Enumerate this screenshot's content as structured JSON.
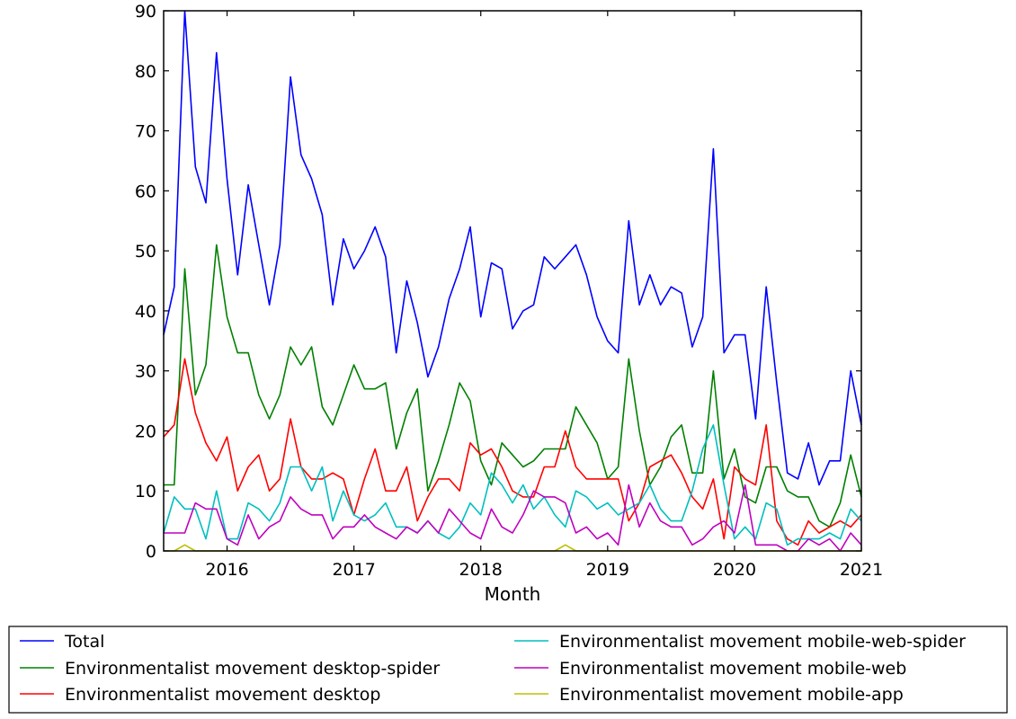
{
  "chart_data": {
    "type": "line",
    "title": "",
    "xlabel": "Month",
    "ylabel": "",
    "xlim": [
      "2015-07",
      "2021-01"
    ],
    "ylim": [
      0,
      90
    ],
    "x_tick_labels": [
      "2016",
      "2017",
      "2018",
      "2019",
      "2020",
      "2021"
    ],
    "y_ticks": [
      0,
      10,
      20,
      30,
      40,
      50,
      60,
      70,
      80,
      90
    ],
    "grid": false,
    "legend_placement": "below the chart, two columns",
    "x": [
      "2015-07",
      "2015-08",
      "2015-09",
      "2015-10",
      "2015-11",
      "2015-12",
      "2016-01",
      "2016-02",
      "2016-03",
      "2016-04",
      "2016-05",
      "2016-06",
      "2016-07",
      "2016-08",
      "2016-09",
      "2016-10",
      "2016-11",
      "2016-12",
      "2017-01",
      "2017-02",
      "2017-03",
      "2017-04",
      "2017-05",
      "2017-06",
      "2017-07",
      "2017-08",
      "2017-09",
      "2017-10",
      "2017-11",
      "2017-12",
      "2018-01",
      "2018-02",
      "2018-03",
      "2018-04",
      "2018-05",
      "2018-06",
      "2018-07",
      "2018-08",
      "2018-09",
      "2018-10",
      "2018-11",
      "2018-12",
      "2019-01",
      "2019-02",
      "2019-03",
      "2019-04",
      "2019-05",
      "2019-06",
      "2019-07",
      "2019-08",
      "2019-09",
      "2019-10",
      "2019-11",
      "2019-12",
      "2020-01",
      "2020-02",
      "2020-03",
      "2020-04",
      "2020-05",
      "2020-06",
      "2020-07",
      "2020-08",
      "2020-09",
      "2020-10",
      "2020-11",
      "2020-12",
      "2021-01"
    ],
    "series": [
      {
        "name": "Total",
        "color": "#0000ff",
        "values": [
          36,
          44,
          90,
          64,
          58,
          83,
          62,
          46,
          61,
          51,
          41,
          51,
          79,
          66,
          62,
          56,
          41,
          52,
          47,
          50,
          54,
          49,
          33,
          45,
          38,
          29,
          34,
          42,
          47,
          54,
          39,
          48,
          47,
          37,
          40,
          41,
          49,
          47,
          49,
          51,
          46,
          39,
          35,
          33,
          55,
          41,
          46,
          41,
          44,
          43,
          34,
          39,
          67,
          33,
          36,
          36,
          22,
          44,
          28,
          13,
          12,
          18,
          11,
          15,
          15,
          30,
          21
        ]
      },
      {
        "name": "Environmentalist movement desktop-spider",
        "color": "#008000",
        "values": [
          11,
          11,
          47,
          26,
          31,
          51,
          39,
          33,
          33,
          26,
          22,
          26,
          34,
          31,
          34,
          24,
          21,
          26,
          31,
          27,
          27,
          28,
          17,
          23,
          27,
          10,
          15,
          21,
          28,
          25,
          15,
          11,
          18,
          16,
          14,
          15,
          17,
          17,
          17,
          24,
          21,
          18,
          12,
          14,
          32,
          20,
          11,
          14,
          19,
          21,
          13,
          13,
          30,
          12,
          17,
          9,
          8,
          14,
          14,
          10,
          9,
          9,
          5,
          4,
          8,
          16,
          9
        ]
      },
      {
        "name": "Environmentalist movement desktop",
        "color": "#ff0000",
        "values": [
          19,
          21,
          32,
          23,
          18,
          15,
          19,
          10,
          14,
          16,
          10,
          12,
          22,
          14,
          12,
          12,
          13,
          12,
          6,
          12,
          17,
          10,
          10,
          14,
          5,
          9,
          12,
          12,
          10,
          18,
          16,
          17,
          14,
          10,
          9,
          9,
          14,
          14,
          20,
          14,
          12,
          12,
          12,
          12,
          5,
          8,
          14,
          15,
          16,
          13,
          9,
          7,
          12,
          2,
          14,
          12,
          11,
          21,
          5,
          2,
          1,
          5,
          3,
          4,
          5,
          4,
          6
        ]
      },
      {
        "name": "Environmentalist movement mobile-web-spider",
        "color": "#00bfbf",
        "values": [
          3,
          9,
          7,
          7,
          2,
          10,
          2,
          2,
          8,
          7,
          5,
          8,
          14,
          14,
          10,
          14,
          5,
          10,
          6,
          5,
          6,
          8,
          4,
          4,
          3,
          5,
          3,
          2,
          4,
          8,
          6,
          13,
          11,
          8,
          11,
          7,
          9,
          6,
          4,
          10,
          9,
          7,
          8,
          6,
          7,
          8,
          11,
          7,
          5,
          5,
          10,
          17,
          21,
          11,
          2,
          4,
          2,
          8,
          7,
          1,
          2,
          2,
          2,
          3,
          2,
          7,
          5
        ]
      },
      {
        "name": "Environmentalist movement mobile-web",
        "color": "#bf00bf",
        "values": [
          3,
          3,
          3,
          8,
          7,
          7,
          2,
          1,
          6,
          2,
          4,
          5,
          9,
          7,
          6,
          6,
          2,
          4,
          4,
          6,
          4,
          3,
          2,
          4,
          3,
          5,
          3,
          7,
          5,
          3,
          2,
          7,
          4,
          3,
          6,
          10,
          9,
          9,
          8,
          3,
          4,
          2,
          3,
          1,
          11,
          4,
          8,
          5,
          4,
          4,
          1,
          2,
          4,
          5,
          3,
          11,
          1,
          1,
          1,
          0,
          0,
          2,
          1,
          2,
          0,
          3,
          1
        ]
      },
      {
        "name": "Environmentalist movement mobile-app",
        "color": "#bfbf00",
        "values": [
          0,
          0,
          1,
          0,
          0,
          0,
          0,
          0,
          0,
          0,
          0,
          0,
          0,
          0,
          0,
          0,
          0,
          0,
          0,
          0,
          0,
          0,
          0,
          0,
          0,
          0,
          0,
          0,
          0,
          0,
          0,
          0,
          0,
          0,
          0,
          0,
          0,
          0,
          1,
          0,
          0,
          0,
          0,
          0,
          0,
          0,
          0,
          0,
          0,
          0,
          0,
          0,
          0,
          0,
          0,
          0,
          0,
          0,
          0,
          0,
          0,
          0,
          0,
          0,
          0,
          0,
          0
        ]
      }
    ]
  }
}
